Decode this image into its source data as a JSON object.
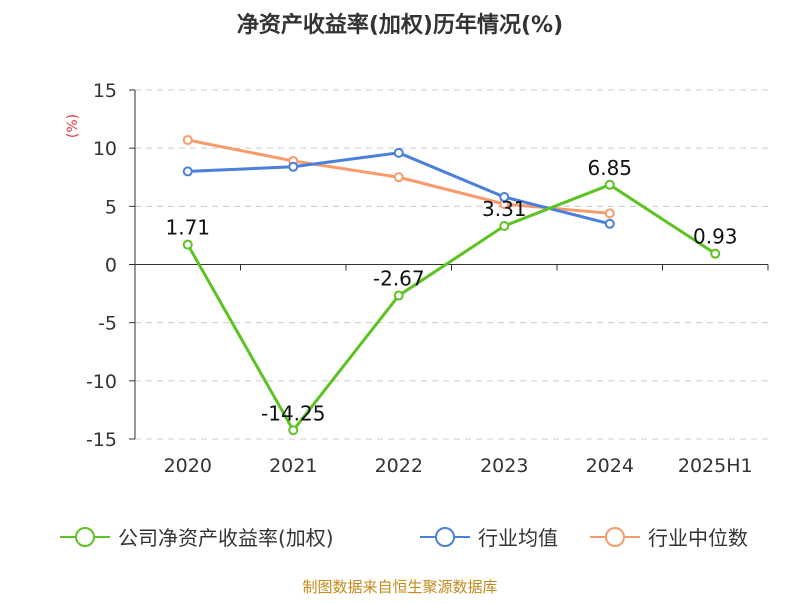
{
  "chart_data": {
    "type": "line",
    "title": "净资产收益率(加权)历年情况(%)",
    "ylabel": "(%)",
    "xlabel": "",
    "categories": [
      "2020",
      "2021",
      "2022",
      "2023",
      "2024",
      "2025H1"
    ],
    "ylim": [
      -15,
      15
    ],
    "yticks": [
      15,
      10,
      5,
      0,
      -5,
      -10,
      -15
    ],
    "grid": true,
    "legend_position": "bottom",
    "series": [
      {
        "name": "公司净资产收益率(加权)",
        "color": "#5cc322",
        "values": [
          1.71,
          -14.25,
          -2.67,
          3.31,
          6.85,
          0.93
        ],
        "labels": [
          "1.71",
          "-14.25",
          "-2.67",
          "3.31",
          "6.85",
          "0.93"
        ]
      },
      {
        "name": "行业均值",
        "color": "#4a7fdc",
        "values": [
          8.0,
          8.4,
          9.6,
          5.8,
          3.5,
          null
        ]
      },
      {
        "name": "行业中位数",
        "color": "#f99a6b",
        "values": [
          10.7,
          8.9,
          7.5,
          5.2,
          4.4,
          null
        ]
      }
    ]
  },
  "source": "制图数据来自恒生聚源数据库"
}
